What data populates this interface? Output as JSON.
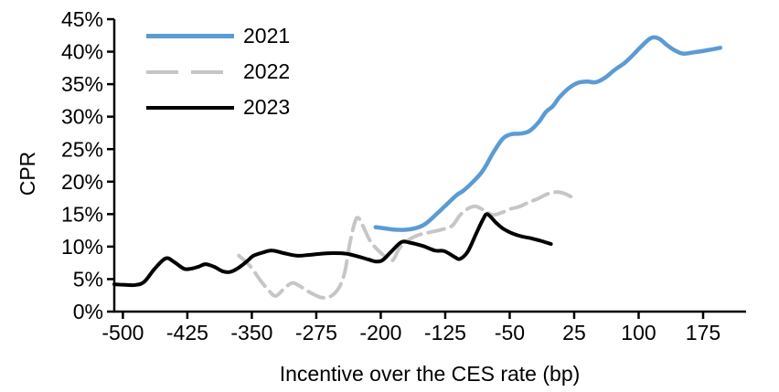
{
  "chart_data": {
    "type": "line",
    "title": "",
    "xlabel": "Incentive over the CES rate (bp)",
    "ylabel": "CPR",
    "xlim": [
      -510,
      225
    ],
    "ylim": [
      0,
      45
    ],
    "x_ticks": [
      -500,
      -425,
      -350,
      -275,
      -200,
      -125,
      -50,
      25,
      100,
      175
    ],
    "y_ticks": [
      0,
      5,
      10,
      15,
      20,
      25,
      30,
      35,
      40,
      45
    ],
    "y_tick_suffix": "%",
    "grid": false,
    "legend_position": "top-left-inside",
    "background": "#FFFFFF",
    "axis_color": "#000000",
    "series": [
      {
        "name": "2021",
        "color": "#5B9BD5",
        "dash": false,
        "width": 4.5,
        "points": [
          [
            -206,
            13.0
          ],
          [
            -195,
            12.8
          ],
          [
            -183,
            12.6
          ],
          [
            -170,
            12.6
          ],
          [
            -158,
            12.9
          ],
          [
            -148,
            13.5
          ],
          [
            -136,
            14.9
          ],
          [
            -124,
            16.4
          ],
          [
            -112,
            17.9
          ],
          [
            -104,
            18.6
          ],
          [
            -94,
            19.8
          ],
          [
            -84,
            21.2
          ],
          [
            -77,
            22.6
          ],
          [
            -69,
            24.5
          ],
          [
            -58,
            26.6
          ],
          [
            -48,
            27.3
          ],
          [
            -37,
            27.4
          ],
          [
            -27,
            27.8
          ],
          [
            -16,
            29.2
          ],
          [
            -8,
            30.7
          ],
          [
            0,
            31.6
          ],
          [
            8,
            33.0
          ],
          [
            19,
            34.4
          ],
          [
            29,
            35.2
          ],
          [
            40,
            35.4
          ],
          [
            50,
            35.3
          ],
          [
            61,
            36.0
          ],
          [
            72,
            37.2
          ],
          [
            83,
            38.2
          ],
          [
            92,
            39.3
          ],
          [
            103,
            40.8
          ],
          [
            112,
            41.9
          ],
          [
            118,
            42.2
          ],
          [
            125,
            41.9
          ],
          [
            133,
            41.0
          ],
          [
            142,
            40.2
          ],
          [
            152,
            39.7
          ],
          [
            164,
            39.9
          ],
          [
            179,
            40.2
          ],
          [
            195,
            40.6
          ]
        ]
      },
      {
        "name": "2022",
        "color": "#C6C6C6",
        "dash": true,
        "width": 4,
        "points": [
          [
            -365,
            8.6
          ],
          [
            -352,
            7.0
          ],
          [
            -340,
            4.8
          ],
          [
            -330,
            3.2
          ],
          [
            -322,
            2.4
          ],
          [
            -312,
            3.6
          ],
          [
            -303,
            4.4
          ],
          [
            -295,
            4.0
          ],
          [
            -283,
            3.0
          ],
          [
            -270,
            2.2
          ],
          [
            -259,
            2.3
          ],
          [
            -249,
            3.6
          ],
          [
            -242,
            6.0
          ],
          [
            -236,
            10.5
          ],
          [
            -230,
            13.8
          ],
          [
            -226,
            14.4
          ],
          [
            -220,
            13.0
          ],
          [
            -212,
            10.8
          ],
          [
            -202,
            9.3
          ],
          [
            -193,
            8.3
          ],
          [
            -186,
            7.9
          ],
          [
            -178,
            9.8
          ],
          [
            -168,
            11.0
          ],
          [
            -156,
            11.8
          ],
          [
            -143,
            12.2
          ],
          [
            -130,
            12.6
          ],
          [
            -117,
            13.2
          ],
          [
            -108,
            14.8
          ],
          [
            -99,
            15.8
          ],
          [
            -90,
            16.2
          ],
          [
            -80,
            15.6
          ],
          [
            -70,
            14.9
          ],
          [
            -60,
            15.2
          ],
          [
            -49,
            15.8
          ],
          [
            -40,
            16.1
          ],
          [
            -28,
            16.8
          ],
          [
            -17,
            17.4
          ],
          [
            -6,
            18.1
          ],
          [
            4,
            18.4
          ],
          [
            13,
            18.2
          ],
          [
            21,
            17.7
          ]
        ]
      },
      {
        "name": "2023",
        "color": "#000000",
        "dash": false,
        "width": 4,
        "points": [
          [
            -510,
            4.2
          ],
          [
            -497,
            4.1
          ],
          [
            -485,
            4.1
          ],
          [
            -475,
            4.6
          ],
          [
            -463,
            6.6
          ],
          [
            -450,
            8.2
          ],
          [
            -440,
            7.6
          ],
          [
            -429,
            6.6
          ],
          [
            -421,
            6.6
          ],
          [
            -412,
            6.9
          ],
          [
            -404,
            7.3
          ],
          [
            -394,
            6.9
          ],
          [
            -384,
            6.2
          ],
          [
            -375,
            6.1
          ],
          [
            -366,
            6.7
          ],
          [
            -356,
            7.7
          ],
          [
            -348,
            8.6
          ],
          [
            -337,
            9.1
          ],
          [
            -326,
            9.4
          ],
          [
            -313,
            9.0
          ],
          [
            -298,
            8.6
          ],
          [
            -285,
            8.7
          ],
          [
            -270,
            8.9
          ],
          [
            -255,
            9.0
          ],
          [
            -240,
            8.9
          ],
          [
            -227,
            8.5
          ],
          [
            -214,
            8.0
          ],
          [
            -206,
            7.7
          ],
          [
            -198,
            7.9
          ],
          [
            -188,
            9.2
          ],
          [
            -176,
            10.7
          ],
          [
            -166,
            10.6
          ],
          [
            -151,
            10.1
          ],
          [
            -137,
            9.4
          ],
          [
            -126,
            9.3
          ],
          [
            -114,
            8.4
          ],
          [
            -108,
            8.1
          ],
          [
            -99,
            9.2
          ],
          [
            -89,
            12.0
          ],
          [
            -81,
            14.2
          ],
          [
            -76,
            15.0
          ],
          [
            -66,
            13.7
          ],
          [
            -58,
            12.8
          ],
          [
            -48,
            12.1
          ],
          [
            -37,
            11.6
          ],
          [
            -26,
            11.3
          ],
          [
            -14,
            10.9
          ],
          [
            -2,
            10.4
          ]
        ]
      }
    ]
  }
}
